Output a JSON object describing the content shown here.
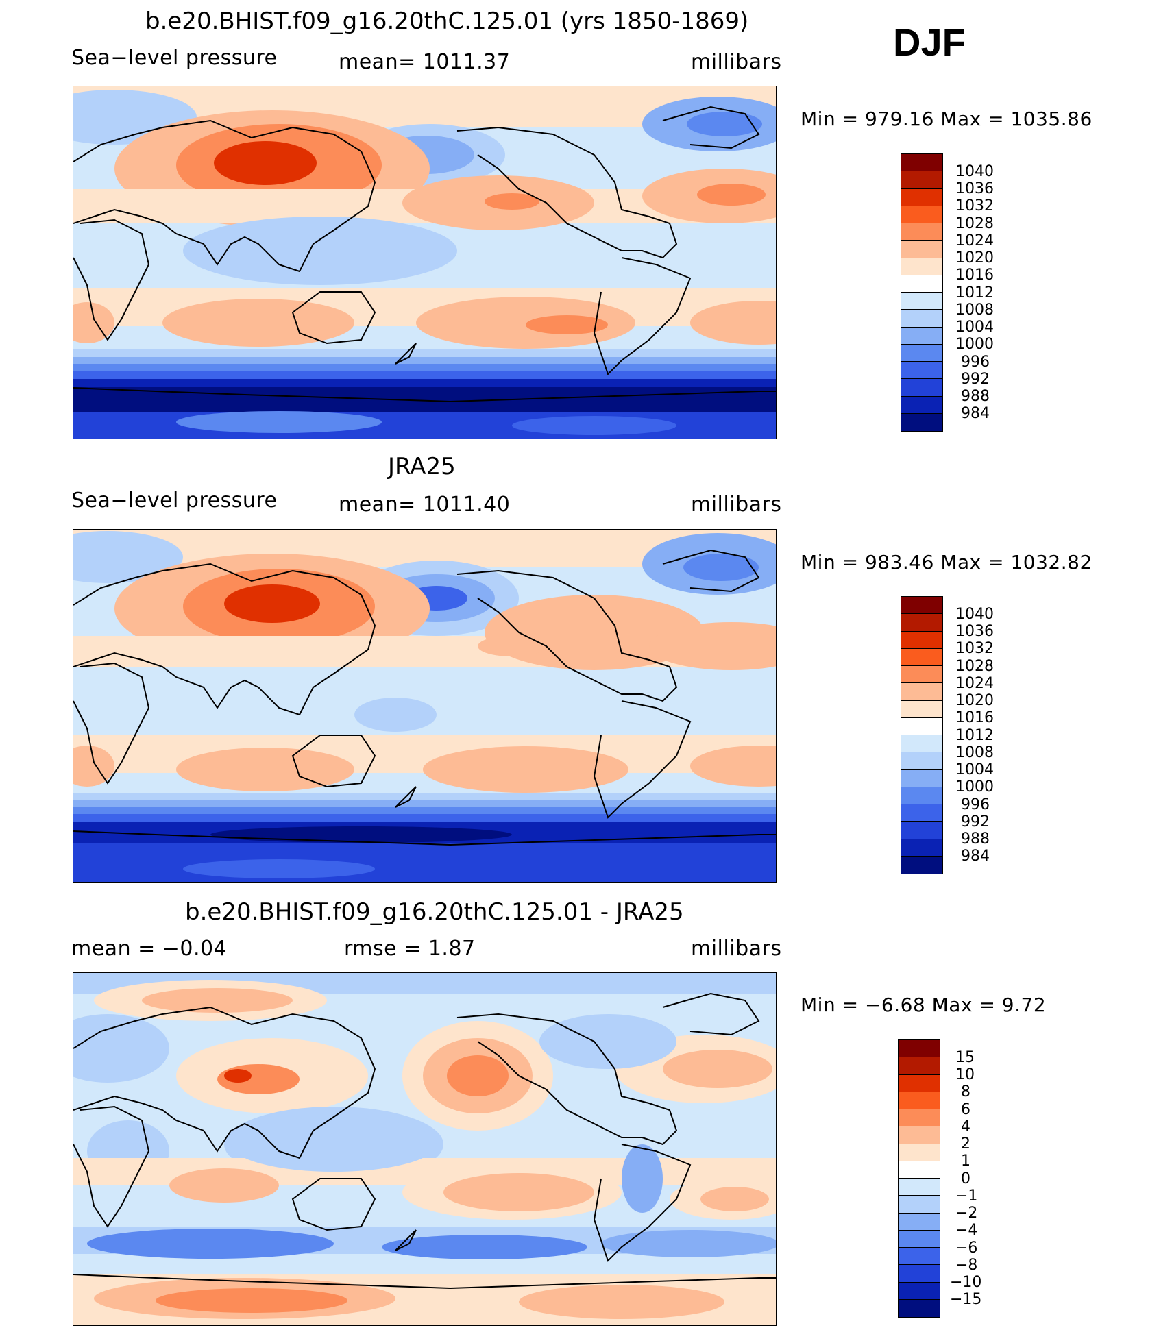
{
  "season": "DJF",
  "panels": [
    {
      "id": "model",
      "title": "b.e20.BHIST.f09_g16.20thC.125.01 (yrs 1850-1869)",
      "left_label": "Sea−level pressure",
      "center_label": "mean=  1011.37",
      "right_label": "millibars",
      "minmax": "Min  =  979.16  Max  =  1035.86",
      "colorbar": {
        "colors": [
          "#7f0000",
          "#b31a00",
          "#e03000",
          "#fa5c1e",
          "#fc8c58",
          "#fdbb95",
          "#fee4cc",
          "#ffffff",
          "#d2e8fb",
          "#b3d1fa",
          "#86aef5",
          "#5b88f0",
          "#3c63ea",
          "#2242d8",
          "#0a22b4",
          "#000e7f"
        ],
        "labels": [
          "1040",
          "1036",
          "1032",
          "1028",
          "1024",
          "1020",
          "1016",
          "1012",
          "1008",
          "1004",
          "1000",
          "996",
          "992",
          "988",
          "984"
        ]
      }
    },
    {
      "id": "obs",
      "title": "JRA25",
      "left_label": "Sea−level pressure",
      "center_label": "mean=  1011.40",
      "right_label": "millibars",
      "minmax": "Min  =  983.46  Max  =  1032.82",
      "colorbar": {
        "colors": [
          "#7f0000",
          "#b31a00",
          "#e03000",
          "#fa5c1e",
          "#fc8c58",
          "#fdbb95",
          "#fee4cc",
          "#ffffff",
          "#d2e8fb",
          "#b3d1fa",
          "#86aef5",
          "#5b88f0",
          "#3c63ea",
          "#2242d8",
          "#0a22b4",
          "#000e7f"
        ],
        "labels": [
          "1040",
          "1036",
          "1032",
          "1028",
          "1024",
          "1020",
          "1016",
          "1012",
          "1008",
          "1004",
          "1000",
          "996",
          "992",
          "988",
          "984"
        ]
      }
    },
    {
      "id": "diff",
      "title": "b.e20.BHIST.f09_g16.20thC.125.01 - JRA25",
      "left_label": "mean  =    −0.04",
      "center_label": "rmse  =     1.87",
      "right_label": "millibars",
      "minmax": "Min  =    −6.68  Max  =      9.72",
      "colorbar": {
        "colors": [
          "#7f0000",
          "#b31a00",
          "#e03000",
          "#fa5c1e",
          "#fc8c58",
          "#fdbb95",
          "#fee4cc",
          "#ffffff",
          "#d2e8fb",
          "#b3d1fa",
          "#86aef5",
          "#5b88f0",
          "#3c63ea",
          "#2242d8",
          "#0a22b4",
          "#000e7f"
        ],
        "labels": [
          "15",
          "10",
          "8",
          "6",
          "4",
          "2",
          "1",
          "0",
          "−1",
          "−2",
          "−4",
          "−6",
          "−8",
          "−10",
          "−15"
        ]
      }
    }
  ]
}
